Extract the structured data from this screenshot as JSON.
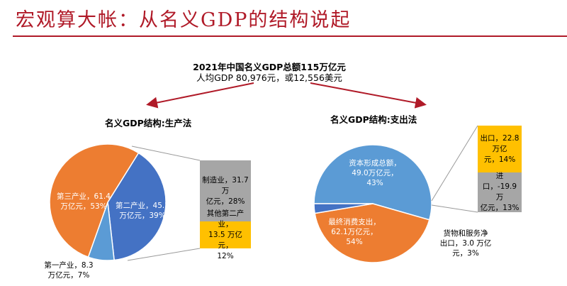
{
  "header": {
    "title": "宏观算大帐：从名义GDP的结构说起"
  },
  "summary": {
    "line1": "2021年中国名义GDP总额115万亿元",
    "line2": "人均GDP 80,976元，或12,556美元"
  },
  "production": {
    "title": "名义GDP结构:生产法",
    "tertiary": {
      "line1": "第三产业，61.4",
      "line2": "万亿元，53%"
    },
    "secondary": {
      "line1": "第二产业，45.2",
      "line2": "万亿元，39%"
    },
    "primary": {
      "line1": "第一产业，8.3",
      "line2": "万亿元，7%"
    },
    "manufacturing": {
      "line1": "制造业，31.7 万",
      "line2": "亿元，28%"
    },
    "other_secondary": {
      "line1": "其他第二产业，",
      "line2": "13.5 万亿元，",
      "line3": "12%"
    }
  },
  "expenditure": {
    "title": "名义GDP结构:支出法",
    "capital": {
      "line1": "资本形成总额，",
      "line2": "49.0万亿元，",
      "line3": "43%"
    },
    "consumption": {
      "line1": "最终消费支出，",
      "line2": "62.1万亿元，",
      "line3": "54%"
    },
    "net_exports": {
      "line1": "货物和服务净",
      "line2": "出口，3.0 万亿",
      "line3": "元，3%"
    },
    "exports": {
      "line1": "出口，22.8万亿",
      "line2": "元，14%"
    },
    "imports": {
      "line1": "进口，-19.9万",
      "line2": "亿元，13%"
    }
  },
  "chart_data": [
    {
      "type": "pie",
      "title": "名义GDP结构:生产法",
      "categories": [
        "第三产业",
        "第二产业",
        "第一产业"
      ],
      "values": [
        61.4,
        45.2,
        8.3
      ],
      "percent": [
        53,
        39,
        7
      ],
      "unit": "万亿元",
      "colors": [
        "#ed7d31",
        "#4472c4",
        "#5b9bd5"
      ],
      "breakdown": {
        "of": "第二产业",
        "categories": [
          "制造业",
          "其他第二产业"
        ],
        "values": [
          31.7,
          13.5
        ],
        "percent": [
          28,
          12
        ],
        "colors": [
          "#a6a6a6",
          "#ffc000"
        ]
      }
    },
    {
      "type": "pie",
      "title": "名义GDP结构:支出法",
      "categories": [
        "资本形成总额",
        "最终消费支出",
        "货物和服务净出口"
      ],
      "values": [
        49.0,
        62.1,
        3.0
      ],
      "percent": [
        43,
        54,
        3
      ],
      "unit": "万亿元",
      "colors": [
        "#ed7d31",
        "#5b9bd5",
        "#4472c4"
      ],
      "breakdown": {
        "of": "货物和服务净出口",
        "categories": [
          "出口",
          "进口"
        ],
        "values": [
          22.8,
          -19.9
        ],
        "percent": [
          14,
          13
        ],
        "colors": [
          "#ffc000",
          "#a6a6a6"
        ]
      }
    }
  ],
  "colors": {
    "accent": "#b01a28"
  }
}
